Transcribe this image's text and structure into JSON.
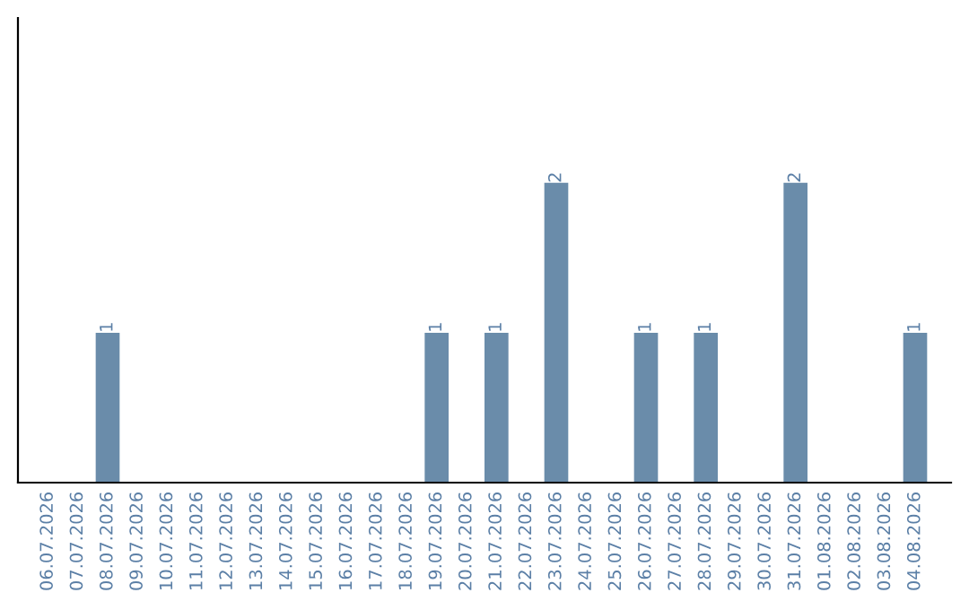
{
  "chart_data": {
    "type": "bar",
    "categories": [
      "06.07.2026",
      "07.07.2026",
      "08.07.2026",
      "09.07.2026",
      "10.07.2026",
      "11.07.2026",
      "12.07.2026",
      "13.07.2026",
      "14.07.2026",
      "15.07.2026",
      "16.07.2026",
      "17.07.2026",
      "18.07.2026",
      "19.07.2026",
      "20.07.2026",
      "21.07.2026",
      "22.07.2026",
      "23.07.2026",
      "24.07.2026",
      "25.07.2026",
      "26.07.2026",
      "27.07.2026",
      "28.07.2026",
      "29.07.2026",
      "30.07.2026",
      "31.07.2026",
      "01.08.2026",
      "02.08.2026",
      "03.08.2026",
      "04.08.2026"
    ],
    "values": [
      0,
      0,
      1,
      0,
      0,
      0,
      0,
      0,
      0,
      0,
      0,
      0,
      0,
      1,
      0,
      1,
      0,
      2,
      0,
      0,
      1,
      0,
      1,
      0,
      0,
      2,
      0,
      0,
      0,
      1
    ],
    "value_labels": [
      null,
      null,
      "1",
      null,
      null,
      null,
      null,
      null,
      null,
      null,
      null,
      null,
      null,
      "1",
      null,
      "1",
      null,
      "2",
      null,
      null,
      "1",
      null,
      "1",
      null,
      null,
      "2",
      null,
      null,
      null,
      "1"
    ],
    "color": "#6a8caa",
    "ylim": [
      0,
      3.1
    ],
    "tick_labels": "x",
    "grid": false,
    "legend": false
  }
}
